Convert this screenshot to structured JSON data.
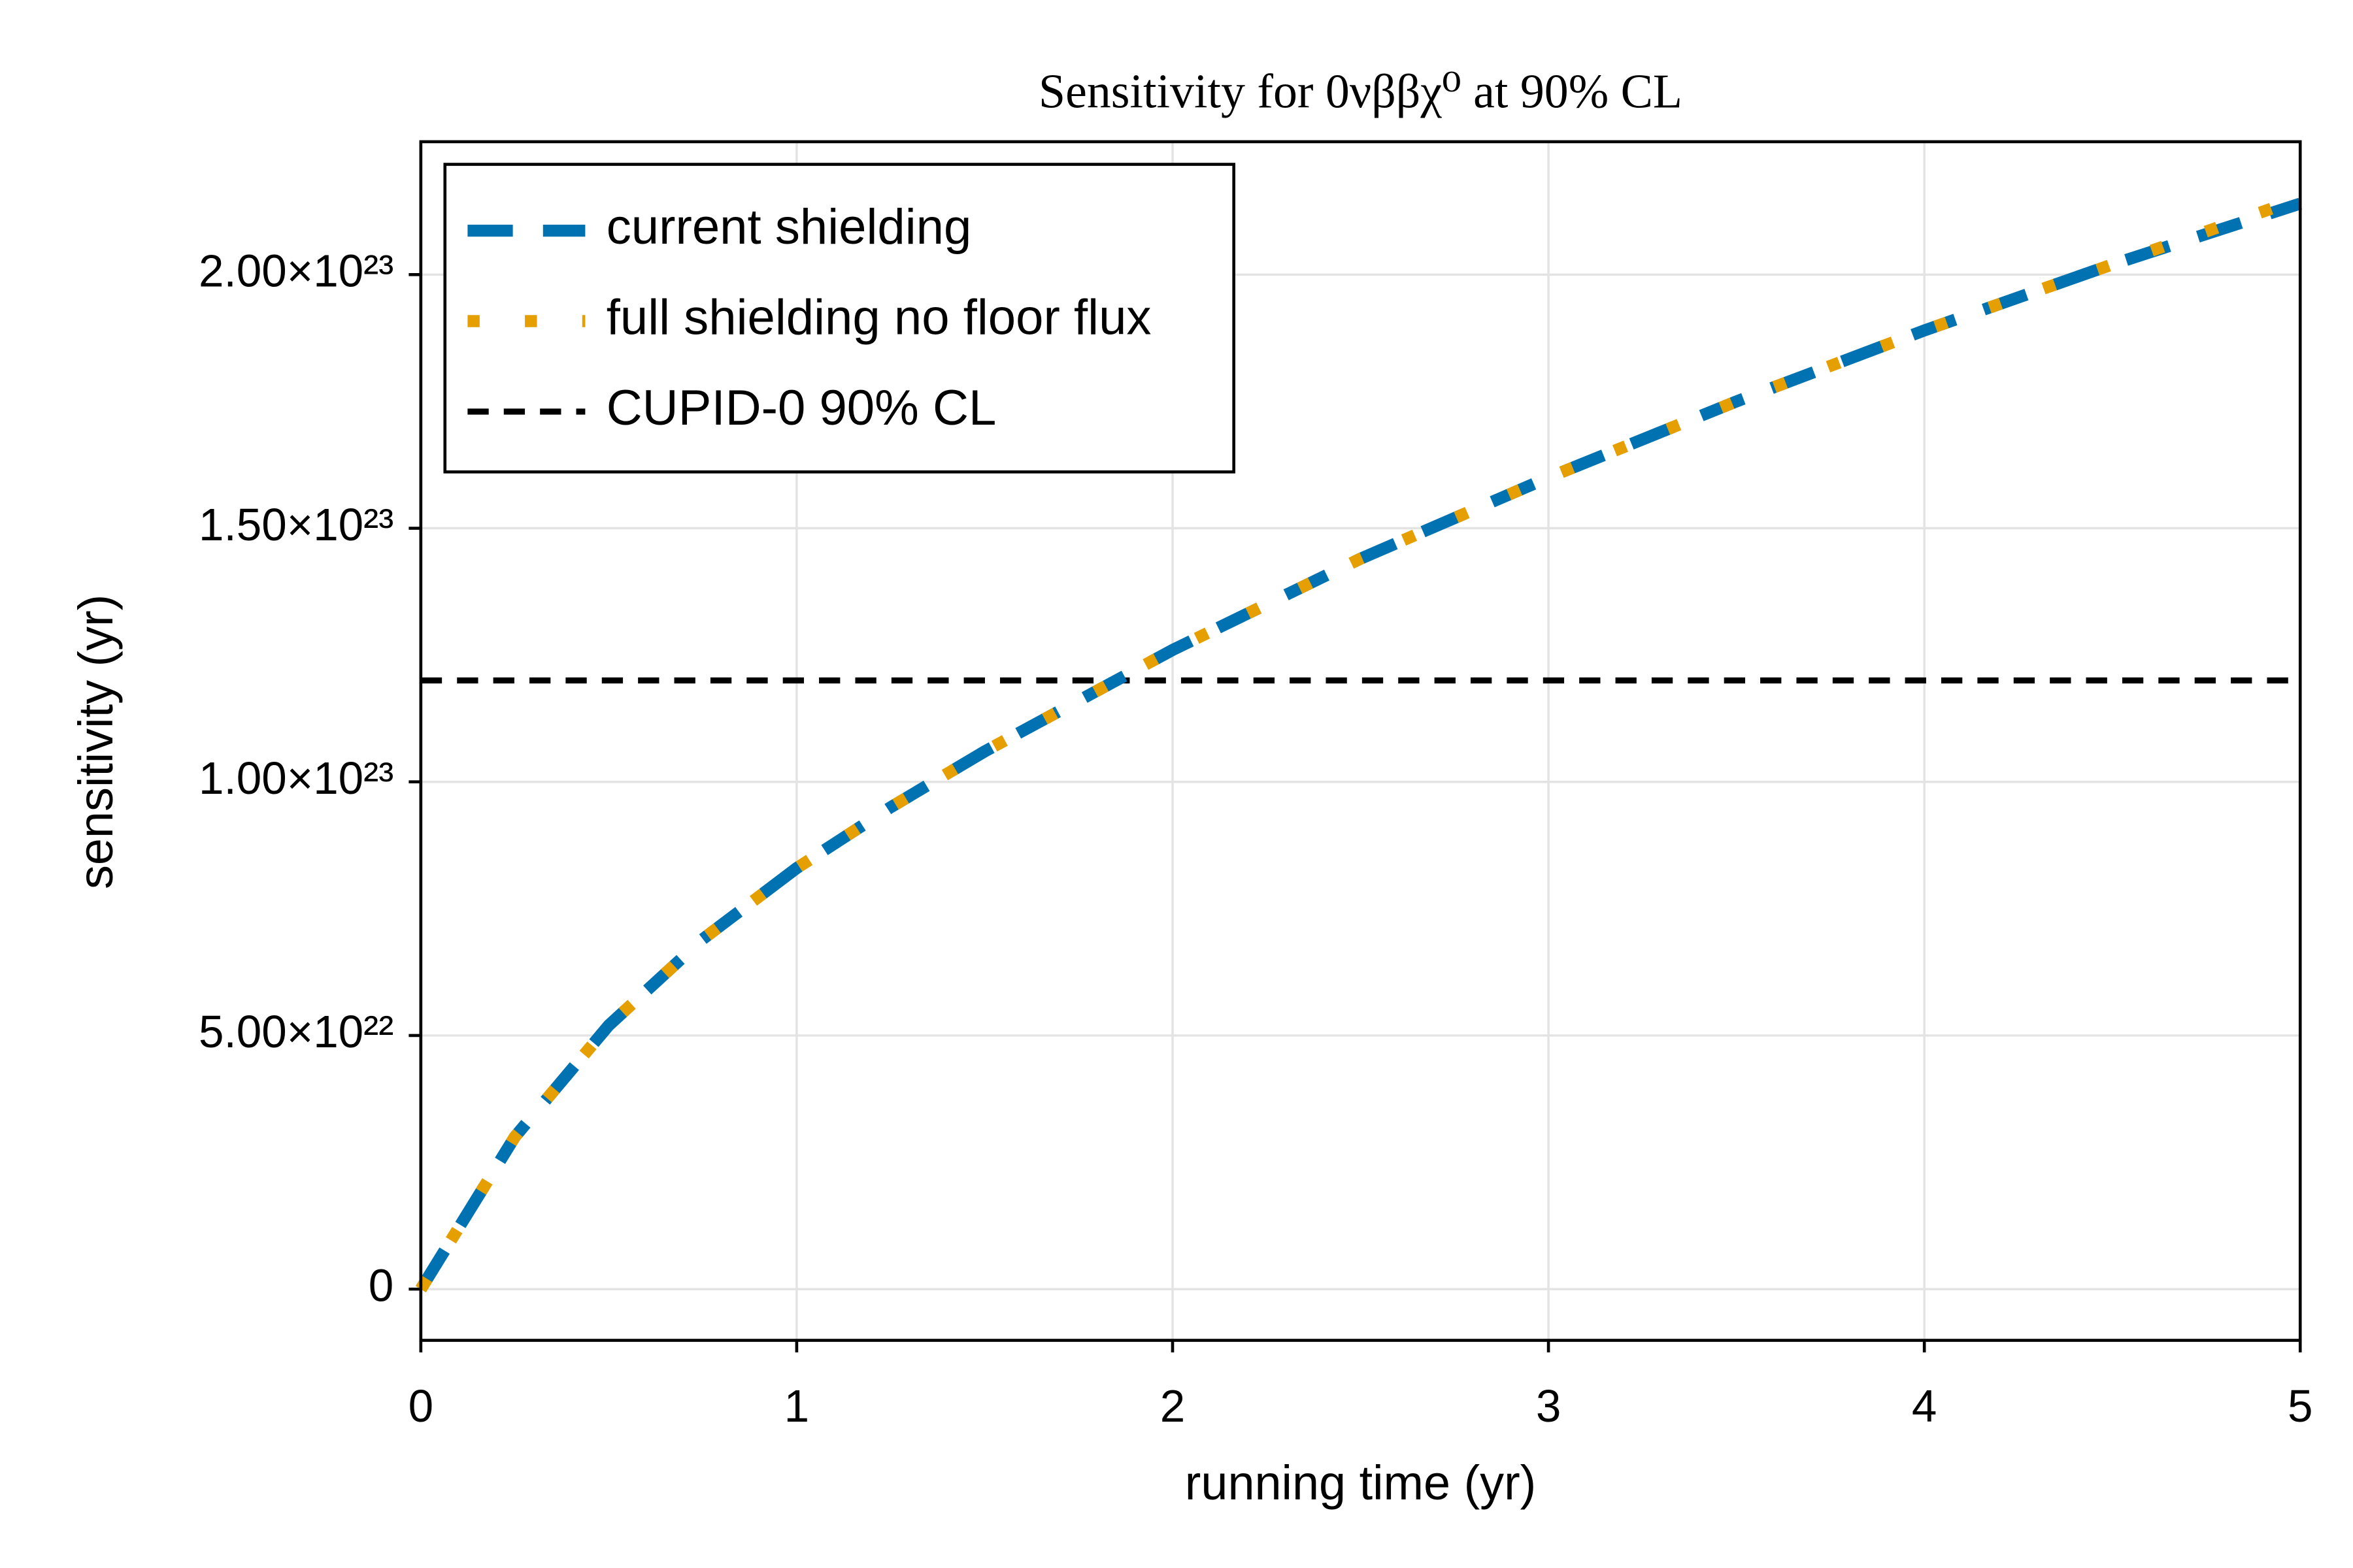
{
  "chart_data": {
    "type": "line",
    "title": "Sensitivity for 0νββχ⁰ at 90% CL",
    "xlabel": "running time (yr)",
    "ylabel": "sensitivity (yr)",
    "x": [
      0,
      0.25,
      0.5,
      0.75,
      1,
      1.25,
      1.5,
      1.75,
      2,
      2.5,
      3,
      3.5,
      4,
      4.5,
      5
    ],
    "series": [
      {
        "name": "current shielding",
        "color": "#0072b2",
        "linestyle": "dash",
        "values": [
          0,
          3e+22,
          5.2e+22,
          6.9e+22,
          8.3e+22,
          9.5e+22,
          1.06e+23,
          1.16e+23,
          1.26e+23,
          1.44e+23,
          1.6e+23,
          1.75e+23,
          1.89e+23,
          2.02e+23,
          2.14e+23
        ]
      },
      {
        "name": "full shielding no floor flux",
        "color": "#e69f00",
        "linestyle": "dot",
        "values": [
          0,
          3e+22,
          5.2e+22,
          6.9e+22,
          8.3e+22,
          9.5e+22,
          1.06e+23,
          1.16e+23,
          1.26e+23,
          1.44e+23,
          1.6e+23,
          1.75e+23,
          1.89e+23,
          2.02e+23,
          2.15e+23
        ]
      }
    ],
    "hlines": [
      {
        "name": "CUPID-0 90% CL",
        "color": "#000000",
        "linestyle": "dash",
        "value": 1.2e+23
      }
    ],
    "xlim": [
      0,
      5
    ],
    "xticks": [
      0,
      1,
      2,
      3,
      4,
      5
    ],
    "ylim": [
      -1.01e+22,
      2.262e+23
    ],
    "yticks": [
      0,
      {
        "value": 5e+22,
        "label": "5.00×10²²"
      },
      {
        "value": 1e+23,
        "label": "1.00×10²³"
      },
      {
        "value": 1.5e+23,
        "label": "1.50×10²³"
      },
      {
        "value": 2e+23,
        "label": "2.00×10²³"
      }
    ],
    "grid": true,
    "legend": "top-left"
  }
}
